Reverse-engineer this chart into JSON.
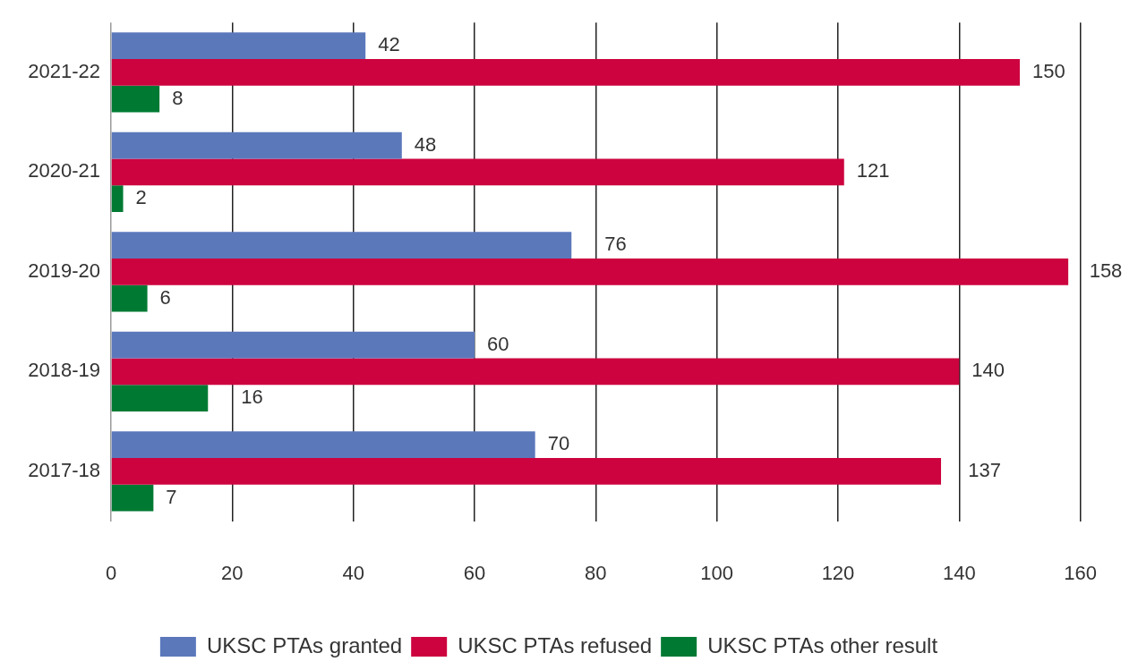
{
  "chart_data": {
    "type": "bar",
    "orientation": "horizontal",
    "categories": [
      "2021-22",
      "2020-21",
      "2019-20",
      "2018-19",
      "2017-18"
    ],
    "series": [
      {
        "name": "UKSC PTAs granted",
        "color": "#5b78bb",
        "values": [
          42,
          48,
          76,
          60,
          70
        ]
      },
      {
        "name": "UKSC PTAs refused",
        "color": "#cc033f",
        "values": [
          150,
          121,
          158,
          140,
          137
        ]
      },
      {
        "name": "UKSC PTAs other result",
        "color": "#007a33",
        "values": [
          8,
          2,
          6,
          16,
          7
        ]
      }
    ],
    "xlim": [
      0,
      160
    ],
    "xticks": [
      0,
      20,
      40,
      60,
      80,
      100,
      120,
      140,
      160
    ],
    "grid": "x",
    "legend": "bottom",
    "data_labels": true
  }
}
